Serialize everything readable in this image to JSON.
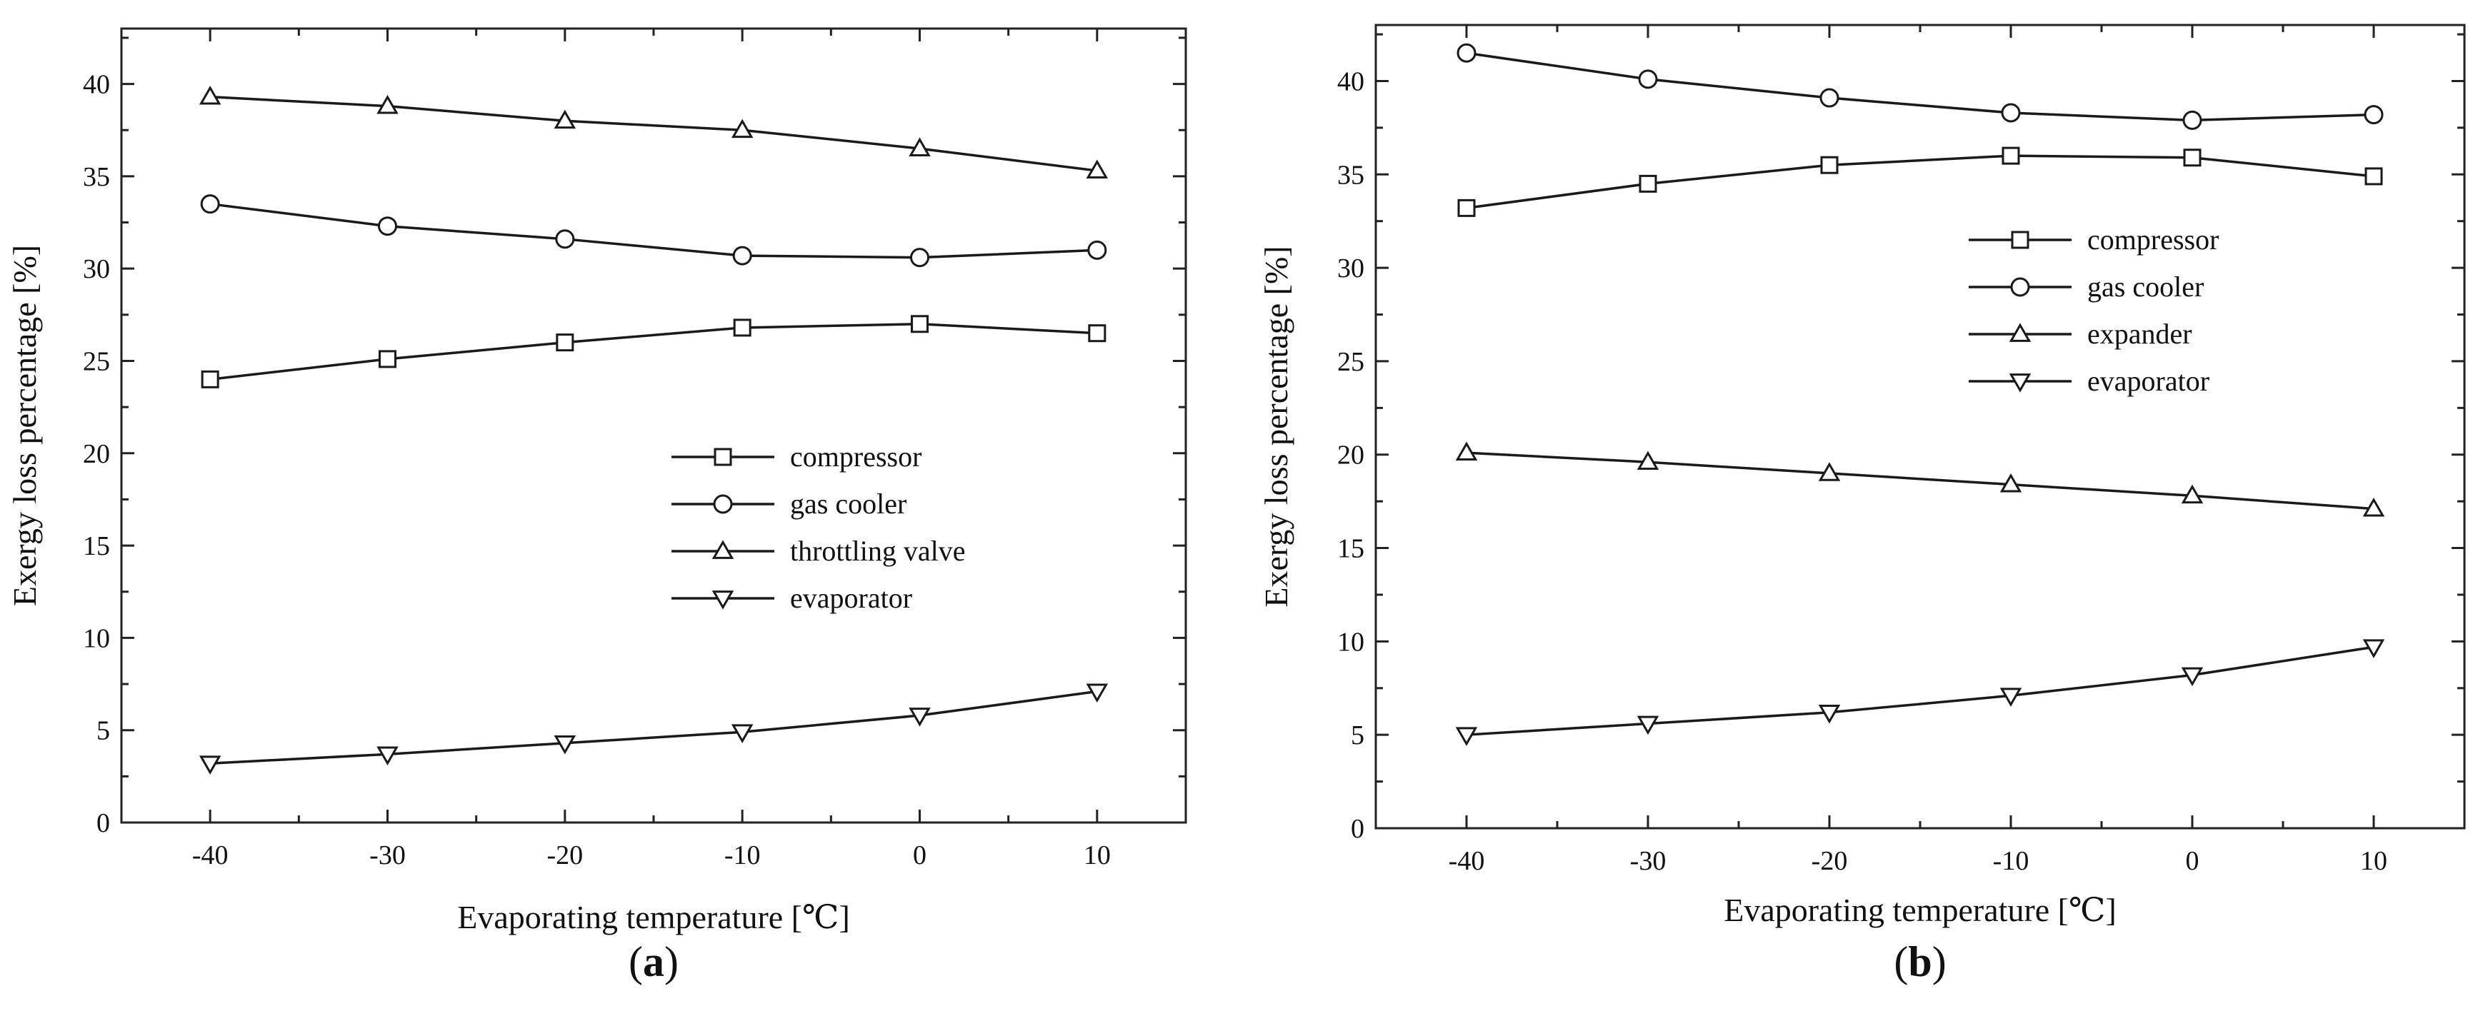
{
  "figure": {
    "panels": [
      {
        "id": "a",
        "caption": "(a)"
      },
      {
        "id": "b",
        "caption": "(b)"
      }
    ]
  },
  "chart_data": [
    {
      "type": "line",
      "panel": "(a)",
      "xlabel": "Evaporating temperature  [℃]",
      "ylabel": "Exergy loss percentage [%]",
      "x": [
        -40,
        -30,
        -20,
        -10,
        0,
        10
      ],
      "xlim": [
        -45,
        15
      ],
      "ylim": [
        0,
        43
      ],
      "xticks": [
        -40,
        -30,
        -20,
        -10,
        0,
        10
      ],
      "yticks": [
        0,
        5,
        10,
        15,
        20,
        25,
        30,
        35,
        40
      ],
      "grid": false,
      "legend_position": "center-right",
      "series": [
        {
          "name": "compressor",
          "marker": "square",
          "values": [
            24.0,
            25.1,
            26.0,
            26.8,
            27.0,
            26.5
          ]
        },
        {
          "name": "gas cooler",
          "marker": "circle",
          "values": [
            33.5,
            32.3,
            31.6,
            30.7,
            30.6,
            31.0
          ]
        },
        {
          "name": "throttling valve",
          "marker": "triangle-up",
          "values": [
            39.3,
            38.8,
            38.0,
            37.5,
            36.5,
            35.3
          ]
        },
        {
          "name": "evaporator",
          "marker": "triangle-down",
          "values": [
            3.2,
            3.7,
            4.3,
            4.9,
            5.8,
            7.1
          ]
        }
      ]
    },
    {
      "type": "line",
      "panel": "(b)",
      "xlabel": "Evaporating temperature  [℃]",
      "ylabel": "Exergy loss percentage [%]",
      "x": [
        -40,
        -30,
        -20,
        -10,
        0,
        10
      ],
      "xlim": [
        -45,
        15
      ],
      "ylim": [
        0,
        43
      ],
      "xticks": [
        -40,
        -30,
        -20,
        -10,
        0,
        10
      ],
      "yticks": [
        0,
        5,
        10,
        15,
        20,
        25,
        30,
        35,
        40
      ],
      "grid": false,
      "legend_position": "upper-right",
      "series": [
        {
          "name": "compressor",
          "marker": "square",
          "values": [
            33.2,
            34.5,
            35.5,
            36.0,
            35.9,
            34.9
          ]
        },
        {
          "name": "gas cooler",
          "marker": "circle",
          "values": [
            41.5,
            40.1,
            39.1,
            38.3,
            37.9,
            38.2
          ]
        },
        {
          "name": "expander",
          "marker": "triangle-up",
          "values": [
            20.1,
            19.6,
            19.0,
            18.4,
            17.8,
            17.1
          ]
        },
        {
          "name": "evaporator",
          "marker": "triangle-down",
          "values": [
            5.0,
            5.6,
            6.2,
            7.1,
            8.2,
            9.7
          ]
        }
      ]
    }
  ]
}
